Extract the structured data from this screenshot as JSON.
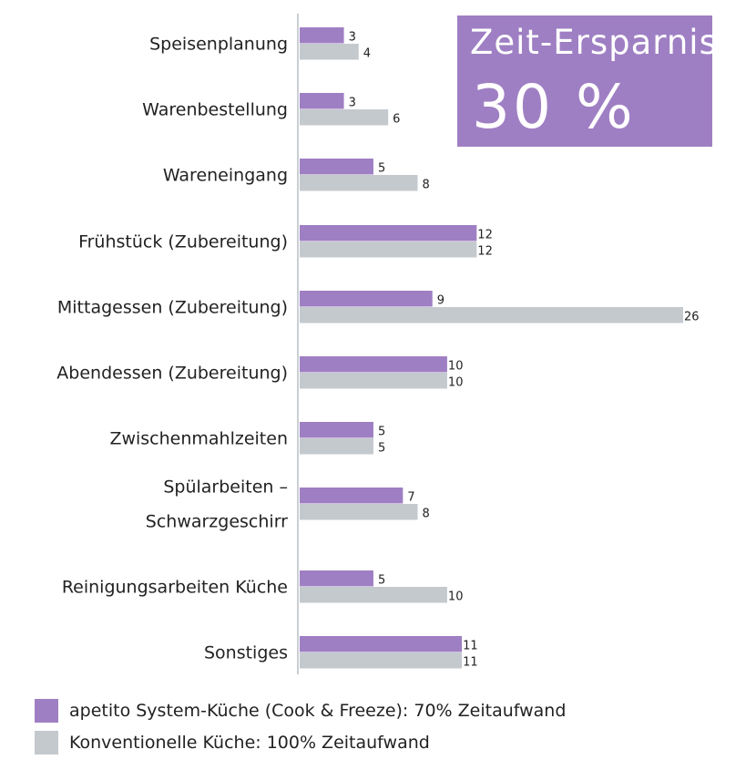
{
  "chart_data": {
    "type": "bar",
    "orientation": "horizontal",
    "categories": [
      "Speisenplanung",
      "Warenbestellung",
      "Wareneingang",
      "Frühstück (Zubereitung)",
      "Mittagessen (Zubereitung)",
      "Abendessen (Zubereitung)",
      "Zwischenmahlzeiten",
      "Spülarbeiten –\nSchwarzgeschirr",
      "Reinigungsarbeiten Küche",
      "Sonstiges"
    ],
    "series": [
      {
        "name": "apetito System-Küche (Cook & Freeze): 70% Zeitaufwand",
        "color": "#9f7fc3",
        "values": [
          3,
          3,
          5,
          12,
          9,
          10,
          5,
          7,
          5,
          11
        ]
      },
      {
        "name": "Konventionelle Küche: 100% Zeitaufwand",
        "color": "#c4c9ce",
        "values": [
          4,
          6,
          8,
          12,
          26,
          10,
          5,
          8,
          10,
          11
        ]
      }
    ],
    "xlim": [
      0,
      26
    ],
    "grid": false,
    "data_labels": true,
    "legend": "bottom-left",
    "annotation": {
      "title": "Zeit-Ersparnis:",
      "value": "30 %",
      "color": "#9f7fc3"
    }
  }
}
